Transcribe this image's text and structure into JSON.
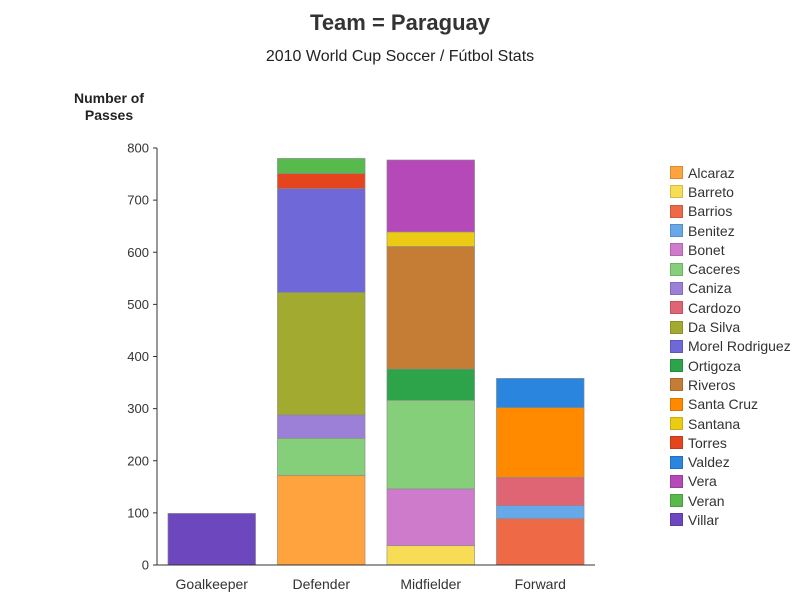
{
  "chart_data": {
    "type": "bar",
    "stacked": true,
    "title": "Team = Paraguay",
    "subtitle": "2010 World Cup Soccer / Fútbol Stats",
    "ylabel": "Number of\nPasses",
    "xlabel": "",
    "ylim": [
      0,
      800
    ],
    "yticks": [
      0,
      100,
      200,
      300,
      400,
      500,
      600,
      700,
      800
    ],
    "grid": false,
    "legend_position": "right",
    "categories": [
      "Goalkeeper",
      "Defender",
      "Midfielder",
      "Forward"
    ],
    "series": [
      {
        "name": "Alcaraz",
        "color": "#FFA33F",
        "values": [
          0,
          172,
          0,
          0
        ]
      },
      {
        "name": "Barreto",
        "color": "#F7DC56",
        "values": [
          0,
          0,
          37,
          0
        ]
      },
      {
        "name": "Barrios",
        "color": "#EE6A47",
        "values": [
          0,
          0,
          0,
          89
        ]
      },
      {
        "name": "Benitez",
        "color": "#67A9E8",
        "values": [
          0,
          0,
          0,
          25
        ]
      },
      {
        "name": "Bonet",
        "color": "#CE7BCB",
        "values": [
          0,
          0,
          109,
          0
        ]
      },
      {
        "name": "Caceres",
        "color": "#86CF7A",
        "values": [
          0,
          71,
          170,
          0
        ]
      },
      {
        "name": "Caniza",
        "color": "#9C7FD6",
        "values": [
          0,
          45,
          0,
          0
        ]
      },
      {
        "name": "Cardozo",
        "color": "#E06574",
        "values": [
          0,
          0,
          0,
          54
        ]
      },
      {
        "name": "Da Silva",
        "color": "#A2AB2F",
        "values": [
          0,
          235,
          0,
          0
        ]
      },
      {
        "name": "Morel Rodriguez",
        "color": "#6E68D8",
        "values": [
          0,
          199,
          0,
          0
        ]
      },
      {
        "name": "Ortigoza",
        "color": "#2DA44A",
        "values": [
          0,
          0,
          60,
          0
        ]
      },
      {
        "name": "Riveros",
        "color": "#C57C35",
        "values": [
          0,
          0,
          235,
          0
        ]
      },
      {
        "name": "Santa Cruz",
        "color": "#FF8A00",
        "values": [
          0,
          0,
          0,
          134
        ]
      },
      {
        "name": "Santana",
        "color": "#EBCB14",
        "values": [
          0,
          0,
          28,
          0
        ]
      },
      {
        "name": "Torres",
        "color": "#E5451E",
        "values": [
          0,
          29,
          0,
          0
        ]
      },
      {
        "name": "Valdez",
        "color": "#2A85DE",
        "values": [
          0,
          0,
          0,
          56
        ]
      },
      {
        "name": "Vera",
        "color": "#B649B8",
        "values": [
          0,
          0,
          138,
          0
        ]
      },
      {
        "name": "Veran",
        "color": "#58B94C",
        "values": [
          0,
          29,
          0,
          0
        ]
      },
      {
        "name": "Villar",
        "color": "#6C47BE",
        "values": [
          99,
          0,
          0,
          0
        ]
      }
    ]
  }
}
